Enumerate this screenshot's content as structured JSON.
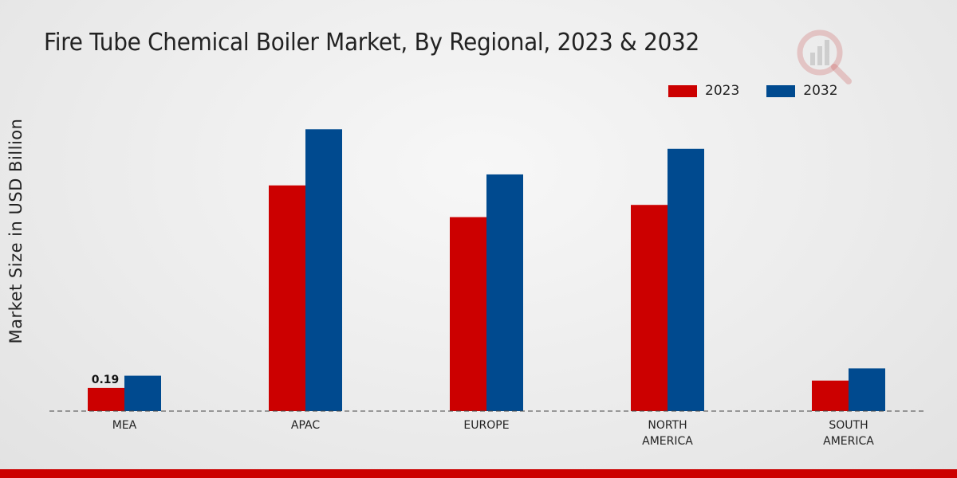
{
  "chart_data": {
    "type": "bar",
    "title": "Fire Tube Chemical Boiler Market, By Regional, 2023 & 2032",
    "xlabel": "",
    "ylabel": "Market Size in USD Billion",
    "categories": [
      "MEA",
      "APAC",
      "EUROPE",
      "NORTH AMERICA",
      "SOUTH AMERICA"
    ],
    "category_lines": [
      [
        "MEA"
      ],
      [
        "APAC"
      ],
      [
        "EUROPE"
      ],
      [
        "NORTH",
        "AMERICA"
      ],
      [
        "SOUTH",
        "AMERICA"
      ]
    ],
    "series": [
      {
        "name": "2023",
        "color": "#cc0000",
        "values": [
          0.19,
          1.85,
          1.59,
          1.69,
          0.25
        ]
      },
      {
        "name": "2032",
        "color": "#004a8f",
        "values": [
          0.29,
          2.31,
          1.94,
          2.15,
          0.35
        ]
      }
    ],
    "data_labels": [
      {
        "series": 0,
        "index": 0,
        "text": "0.19"
      }
    ],
    "ylim": [
      0,
      3.2
    ],
    "grid": false,
    "legend_position": "top-right"
  }
}
